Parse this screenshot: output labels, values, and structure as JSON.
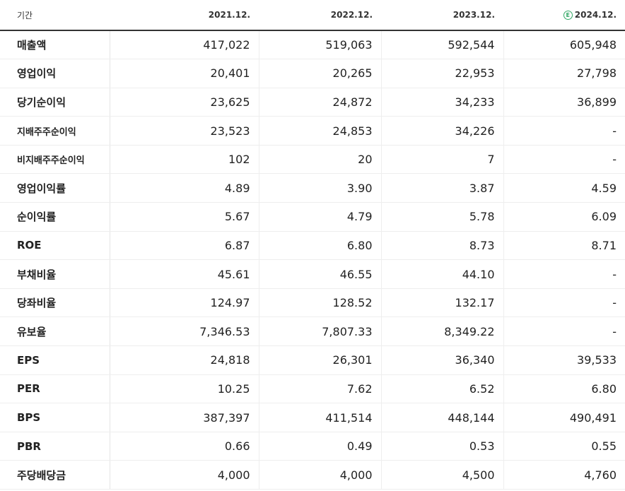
{
  "table": {
    "header": {
      "label": "기간",
      "periods": [
        {
          "label": "2021.12.",
          "estimate": false
        },
        {
          "label": "2022.12.",
          "estimate": false
        },
        {
          "label": "2023.12.",
          "estimate": false
        },
        {
          "label": "2024.12.",
          "estimate": true,
          "estimate_mark": "E"
        }
      ]
    },
    "rows": [
      {
        "label": "매출액",
        "values": [
          "417,022",
          "519,063",
          "592,544",
          "605,948"
        ]
      },
      {
        "label": "영업이익",
        "values": [
          "20,401",
          "20,265",
          "22,953",
          "27,798"
        ]
      },
      {
        "label": "당기순이익",
        "values": [
          "23,625",
          "24,872",
          "34,233",
          "36,899"
        ]
      },
      {
        "label": "지배주주순이익",
        "values": [
          "23,523",
          "24,853",
          "34,226",
          "-"
        ]
      },
      {
        "label": "비지배주주순이익",
        "values": [
          "102",
          "20",
          "7",
          "-"
        ]
      },
      {
        "label": "영업이익률",
        "values": [
          "4.89",
          "3.90",
          "3.87",
          "4.59"
        ]
      },
      {
        "label": "순이익률",
        "values": [
          "5.67",
          "4.79",
          "5.78",
          "6.09"
        ]
      },
      {
        "label": "ROE",
        "values": [
          "6.87",
          "6.80",
          "8.73",
          "8.71"
        ]
      },
      {
        "label": "부채비율",
        "values": [
          "45.61",
          "46.55",
          "44.10",
          "-"
        ]
      },
      {
        "label": "당좌비율",
        "values": [
          "124.97",
          "128.52",
          "132.17",
          "-"
        ]
      },
      {
        "label": "유보율",
        "values": [
          "7,346.53",
          "7,807.33",
          "8,349.22",
          "-"
        ]
      },
      {
        "label": "EPS",
        "values": [
          "24,818",
          "26,301",
          "36,340",
          "39,533"
        ]
      },
      {
        "label": "PER",
        "values": [
          "10.25",
          "7.62",
          "6.52",
          "6.80"
        ]
      },
      {
        "label": "BPS",
        "values": [
          "387,397",
          "411,514",
          "448,144",
          "490,491"
        ]
      },
      {
        "label": "PBR",
        "values": [
          "0.66",
          "0.49",
          "0.53",
          "0.55"
        ]
      },
      {
        "label": "주당배당금",
        "values": [
          "4,000",
          "4,000",
          "4,500",
          "4,760"
        ]
      }
    ]
  }
}
